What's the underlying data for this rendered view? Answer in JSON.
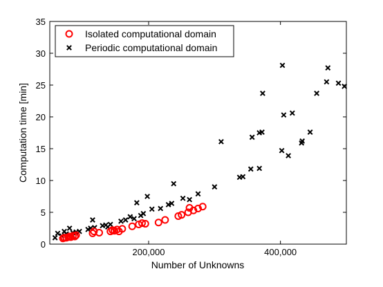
{
  "chart_data": {
    "type": "scatter",
    "title": "",
    "xlabel": "Number of Unknowns",
    "ylabel": "Computation time [min]",
    "xlim": [
      50000,
      500000
    ],
    "ylim": [
      0,
      35
    ],
    "x_ticks": [
      200000,
      400000
    ],
    "x_tick_labels": [
      "200,000",
      "400,000"
    ],
    "y_ticks": [
      0,
      5,
      10,
      15,
      20,
      25,
      30,
      35
    ],
    "y_tick_labels": [
      "0",
      "5",
      "10",
      "15",
      "20",
      "25",
      "30",
      "35"
    ],
    "grid": false,
    "legend_position": "top-left",
    "series": [
      {
        "name": "Isolated computational domain",
        "marker": "circle",
        "color": "#ff0000",
        "points": [
          [
            70000,
            0.9
          ],
          [
            72000,
            1.0
          ],
          [
            75000,
            1.0
          ],
          [
            78000,
            1.1
          ],
          [
            80000,
            1.2
          ],
          [
            82000,
            1.1
          ],
          [
            85000,
            1.3
          ],
          [
            88000,
            1.2
          ],
          [
            90000,
            1.4
          ],
          [
            115000,
            1.7
          ],
          [
            117000,
            2.0
          ],
          [
            125000,
            1.8
          ],
          [
            142000,
            2.0
          ],
          [
            145000,
            2.2
          ],
          [
            148000,
            2.1
          ],
          [
            152000,
            2.3
          ],
          [
            155000,
            2.0
          ],
          [
            160000,
            2.4
          ],
          [
            175000,
            2.8
          ],
          [
            185000,
            3.1
          ],
          [
            190000,
            3.3
          ],
          [
            195000,
            3.2
          ],
          [
            215000,
            3.4
          ],
          [
            225000,
            3.8
          ],
          [
            245000,
            4.4
          ],
          [
            250000,
            4.6
          ],
          [
            260000,
            5.0
          ],
          [
            262000,
            5.7
          ],
          [
            268000,
            5.3
          ],
          [
            275000,
            5.6
          ],
          [
            282000,
            5.9
          ]
        ]
      },
      {
        "name": "Periodic computational domain",
        "marker": "x",
        "color": "#000000",
        "points": [
          [
            58000,
            1.0
          ],
          [
            62000,
            1.7
          ],
          [
            68000,
            1.3
          ],
          [
            72000,
            2.0
          ],
          [
            75000,
            1.6
          ],
          [
            80000,
            2.5
          ],
          [
            85000,
            1.8
          ],
          [
            90000,
            1.9
          ],
          [
            95000,
            2.0
          ],
          [
            108000,
            2.3
          ],
          [
            112000,
            2.5
          ],
          [
            115000,
            3.8
          ],
          [
            118000,
            2.6
          ],
          [
            130000,
            2.9
          ],
          [
            135000,
            3.0
          ],
          [
            138000,
            2.7
          ],
          [
            142000,
            3.1
          ],
          [
            158000,
            3.6
          ],
          [
            165000,
            3.8
          ],
          [
            172000,
            4.3
          ],
          [
            178000,
            4.0
          ],
          [
            182000,
            6.5
          ],
          [
            188000,
            4.5
          ],
          [
            192000,
            4.8
          ],
          [
            198000,
            7.5
          ],
          [
            205000,
            5.5
          ],
          [
            218000,
            5.6
          ],
          [
            230000,
            6.2
          ],
          [
            235000,
            6.4
          ],
          [
            238000,
            9.5
          ],
          [
            252000,
            7.2
          ],
          [
            262000,
            7.0
          ],
          [
            275000,
            7.9
          ],
          [
            300000,
            9.0
          ],
          [
            310000,
            16.1
          ],
          [
            338000,
            10.5
          ],
          [
            343000,
            10.6
          ],
          [
            355000,
            11.8
          ],
          [
            357000,
            16.8
          ],
          [
            368000,
            11.9
          ],
          [
            368000,
            17.5
          ],
          [
            372000,
            17.6
          ],
          [
            373000,
            23.7
          ],
          [
            402000,
            14.7
          ],
          [
            403000,
            28.1
          ],
          [
            405000,
            20.3
          ],
          [
            412000,
            13.9
          ],
          [
            418000,
            20.6
          ],
          [
            432000,
            15.9
          ],
          [
            433000,
            16.2
          ],
          [
            445000,
            17.6
          ],
          [
            455000,
            23.7
          ],
          [
            470000,
            25.5
          ],
          [
            472000,
            27.7
          ],
          [
            488000,
            25.3
          ],
          [
            497000,
            24.8
          ]
        ]
      }
    ]
  }
}
